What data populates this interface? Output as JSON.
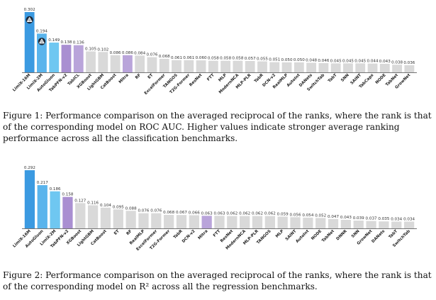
{
  "figures": [
    {
      "caption": "Figure 1: Performance comparison on the averaged reciprocal of the ranks, where the rank is that of the corresponding model on ROC AUC. Higher values indicate stronger average ranking performance across all the classification benchmarks.",
      "chart_data": {
        "type": "bar",
        "title": "",
        "xlabel": "",
        "ylabel": "",
        "ylim": [
          0,
          0.302
        ],
        "grid": false,
        "categories": [
          "LimiX-16M",
          "LimiX-2M",
          "AutoGluon",
          "TabPFN-v2",
          "TabICL",
          "XGBoost",
          "LightGBM",
          "CatBoost",
          "Mitra",
          "RF",
          "ET",
          "ExcelFormer",
          "TANGOS",
          "T2G-Former",
          "ResNet",
          "FTT",
          "MLP",
          "ModernNCA",
          "MLP-PLR",
          "TabR",
          "DCN-v2",
          "RealMLP",
          "AutoInt",
          "DANets",
          "SwitchTab",
          "TabT",
          "SNN",
          "SAINT",
          "TabCaps",
          "NODE",
          "TabNet",
          "GrowNet"
        ],
        "values": [
          0.302,
          0.194,
          0.149,
          0.138,
          0.136,
          0.105,
          0.102,
          0.086,
          0.086,
          0.084,
          0.076,
          0.068,
          0.061,
          0.061,
          0.06,
          0.058,
          0.058,
          0.058,
          0.057,
          0.055,
          0.051,
          0.05,
          0.05,
          0.048,
          0.046,
          0.045,
          0.045,
          0.045,
          0.044,
          0.043,
          0.038,
          0.036
        ],
        "bar_colors": [
          "#3b9ae1",
          "#5ab4ec",
          "#6fc7f1",
          "#a98fd1",
          "#b9a4da",
          "#d9d9d9",
          "#d9d9d9",
          "#d9d9d9",
          "#b9a4da",
          "#d9d9d9",
          "#d9d9d9",
          "#d9d9d9",
          "#d9d9d9",
          "#d9d9d9",
          "#d9d9d9",
          "#d9d9d9",
          "#d9d9d9",
          "#d9d9d9",
          "#d9d9d9",
          "#d9d9d9",
          "#d9d9d9",
          "#d9d9d9",
          "#d9d9d9",
          "#d9d9d9",
          "#d9d9d9",
          "#d9d9d9",
          "#d9d9d9",
          "#d9d9d9",
          "#d9d9d9",
          "#d9d9d9",
          "#d9d9d9",
          "#d9d9d9"
        ],
        "logo_bars": [
          "LimiX-16M",
          "LimiX-2M"
        ]
      }
    },
    {
      "caption": "Figure 2: Performance comparison on the averaged reciprocal of the ranks, where the rank is that of the corresponding model on R² across all the regression benchmarks.",
      "chart_data": {
        "type": "bar",
        "title": "",
        "xlabel": "",
        "ylabel": "",
        "ylim": [
          0,
          0.292
        ],
        "grid": false,
        "categories": [
          "LimiX-16M",
          "AutoGluon",
          "LimiX-2M",
          "TabPFN-v2",
          "XGBoost",
          "LightGBM",
          "CatBoost",
          "ET",
          "RF",
          "RealMLP",
          "ExcelFormer",
          "T2G-Former",
          "TabR",
          "DCN-v2",
          "Mitra",
          "FTT",
          "ResNet",
          "ModernNCA",
          "MLP-PLR",
          "TANGOS",
          "MLP",
          "SAINT",
          "AutoInt",
          "NODE",
          "TabNet",
          "DNNR",
          "SNN",
          "GrowNet",
          "DANets",
          "TabT",
          "SwitchTab"
        ],
        "values": [
          0.292,
          0.217,
          0.186,
          0.158,
          0.127,
          0.116,
          0.104,
          0.095,
          0.088,
          0.076,
          0.076,
          0.068,
          0.067,
          0.066,
          0.063,
          0.063,
          0.062,
          0.062,
          0.062,
          0.062,
          0.059,
          0.056,
          0.054,
          0.052,
          0.047,
          0.043,
          0.039,
          0.037,
          0.035,
          0.034,
          0.034
        ],
        "bar_colors": [
          "#3b9ae1",
          "#5ab4ec",
          "#6fc7f1",
          "#a98fd1",
          "#d9d9d9",
          "#d9d9d9",
          "#d9d9d9",
          "#d9d9d9",
          "#d9d9d9",
          "#d9d9d9",
          "#d9d9d9",
          "#d9d9d9",
          "#d9d9d9",
          "#d9d9d9",
          "#b9a4da",
          "#d9d9d9",
          "#d9d9d9",
          "#d9d9d9",
          "#d9d9d9",
          "#d9d9d9",
          "#d9d9d9",
          "#d9d9d9",
          "#d9d9d9",
          "#d9d9d9",
          "#d9d9d9",
          "#d9d9d9",
          "#d9d9d9",
          "#d9d9d9",
          "#d9d9d9",
          "#d9d9d9",
          "#d9d9d9"
        ],
        "logo_bars": []
      }
    }
  ]
}
